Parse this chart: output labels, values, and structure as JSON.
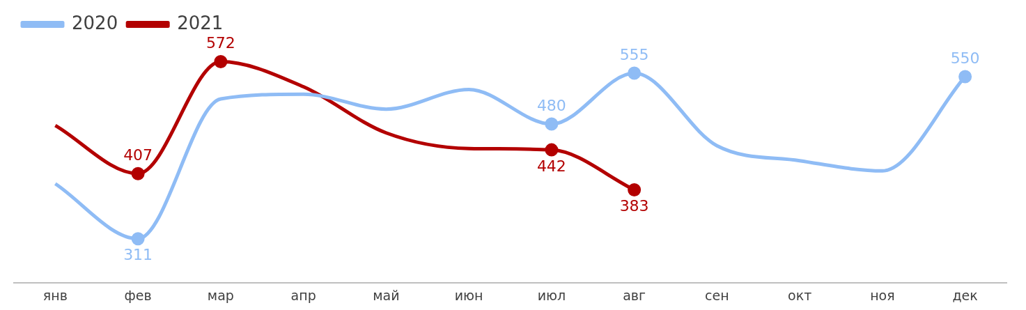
{
  "chart_data": {
    "type": "line",
    "categories": [
      "янв",
      "фев",
      "мар",
      "апр",
      "май",
      "июн",
      "июл",
      "авг",
      "сен",
      "окт",
      "ноя",
      "дек"
    ],
    "series": [
      {
        "name": "2020",
        "color": "#8fbcf5",
        "values": [
          392,
          311,
          517,
          524,
          502,
          531,
          480,
          555,
          448,
          426,
          411,
          550
        ],
        "value_labels": [
          null,
          "311",
          null,
          null,
          null,
          null,
          "480",
          "555",
          null,
          null,
          null,
          "550"
        ]
      },
      {
        "name": "2021",
        "color": "#b30000",
        "values": [
          478,
          407,
          572,
          535,
          467,
          444,
          442,
          383,
          null,
          null,
          null,
          null
        ],
        "value_labels": [
          null,
          "407",
          "572",
          null,
          null,
          null,
          "442",
          "383",
          null,
          null,
          null,
          null
        ]
      }
    ],
    "legend": "top left",
    "grid": false,
    "line_style": "solid"
  }
}
